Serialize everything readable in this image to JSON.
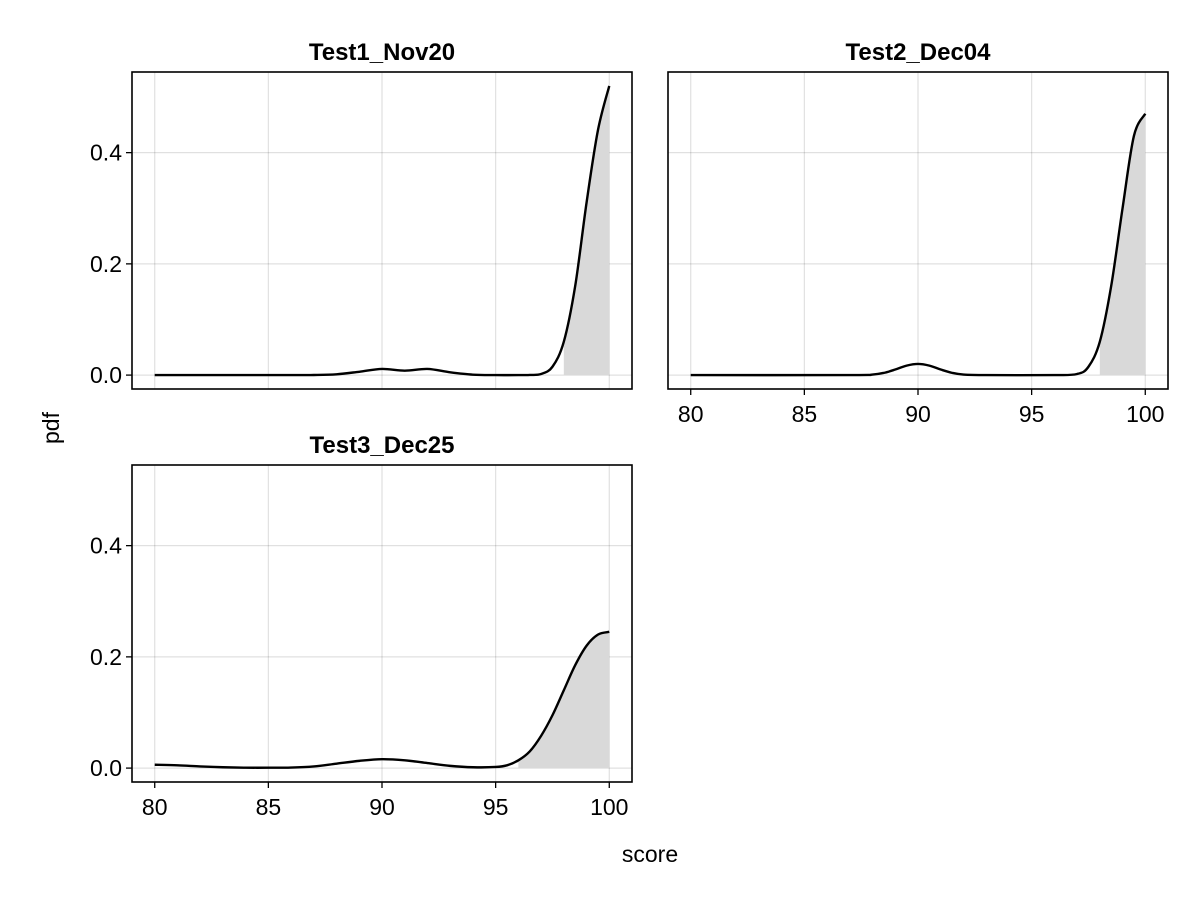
{
  "figure": {
    "xlabel": "score",
    "ylabel": "pdf"
  },
  "chart_data": [
    {
      "type": "area",
      "title": "Test1_Nov20",
      "xlabel": "",
      "ylabel": "",
      "xlim": [
        79,
        101
      ],
      "ylim": [
        -0.025,
        0.545
      ],
      "xticks": [
        80,
        85,
        90,
        95,
        100
      ],
      "yticks": [
        0.0,
        0.2,
        0.4
      ],
      "show_xticklabels": false,
      "show_yticklabels": true,
      "grid": true,
      "fill_from": 98.0,
      "x": [
        80,
        86,
        87,
        88,
        89,
        90,
        91,
        92,
        93,
        94,
        95,
        96,
        96.5,
        97,
        97.5,
        98,
        98.5,
        99,
        99.5,
        100
      ],
      "y": [
        0.0,
        0.0,
        0.0002,
        0.0015,
        0.006,
        0.011,
        0.008,
        0.011,
        0.005,
        0.0008,
        0.0,
        0.0,
        0.0003,
        0.002,
        0.015,
        0.06,
        0.16,
        0.31,
        0.44,
        0.52
      ]
    },
    {
      "type": "area",
      "title": "Test2_Dec04",
      "xlabel": "",
      "ylabel": "",
      "xlim": [
        79,
        101
      ],
      "ylim": [
        -0.025,
        0.545
      ],
      "xticks": [
        80,
        85,
        90,
        95,
        100
      ],
      "yticks": [
        0.0,
        0.2,
        0.4
      ],
      "show_xticklabels": true,
      "show_yticklabels": false,
      "grid": true,
      "fill_from": 98.0,
      "x": [
        80,
        87,
        88,
        88.5,
        89,
        89.5,
        90,
        90.5,
        91,
        91.5,
        92,
        93,
        96,
        97,
        97.5,
        98,
        98.5,
        99,
        99.5,
        100
      ],
      "y": [
        0.0,
        0.0,
        0.001,
        0.004,
        0.01,
        0.017,
        0.02,
        0.017,
        0.01,
        0.004,
        0.001,
        0.0,
        0.0,
        0.002,
        0.015,
        0.06,
        0.16,
        0.3,
        0.43,
        0.47
      ]
    },
    {
      "type": "area",
      "title": "Test3_Dec25",
      "xlabel": "",
      "ylabel": "",
      "xlim": [
        79,
        101
      ],
      "ylim": [
        -0.025,
        0.545
      ],
      "xticks": [
        80,
        85,
        90,
        95,
        100
      ],
      "yticks": [
        0.0,
        0.2,
        0.4
      ],
      "show_xticklabels": true,
      "show_yticklabels": true,
      "grid": true,
      "fill_from": 96.0,
      "x": [
        80,
        81,
        82,
        83,
        84,
        85,
        86,
        87,
        88,
        89,
        90,
        91,
        92,
        93,
        94,
        95,
        95.5,
        96,
        96.5,
        97,
        97.5,
        98,
        98.5,
        99,
        99.5,
        100
      ],
      "y": [
        0.006,
        0.005,
        0.003,
        0.0015,
        0.0007,
        0.0007,
        0.001,
        0.003,
        0.008,
        0.013,
        0.016,
        0.014,
        0.009,
        0.004,
        0.0015,
        0.002,
        0.005,
        0.014,
        0.03,
        0.058,
        0.095,
        0.14,
        0.185,
        0.22,
        0.24,
        0.245
      ]
    }
  ]
}
